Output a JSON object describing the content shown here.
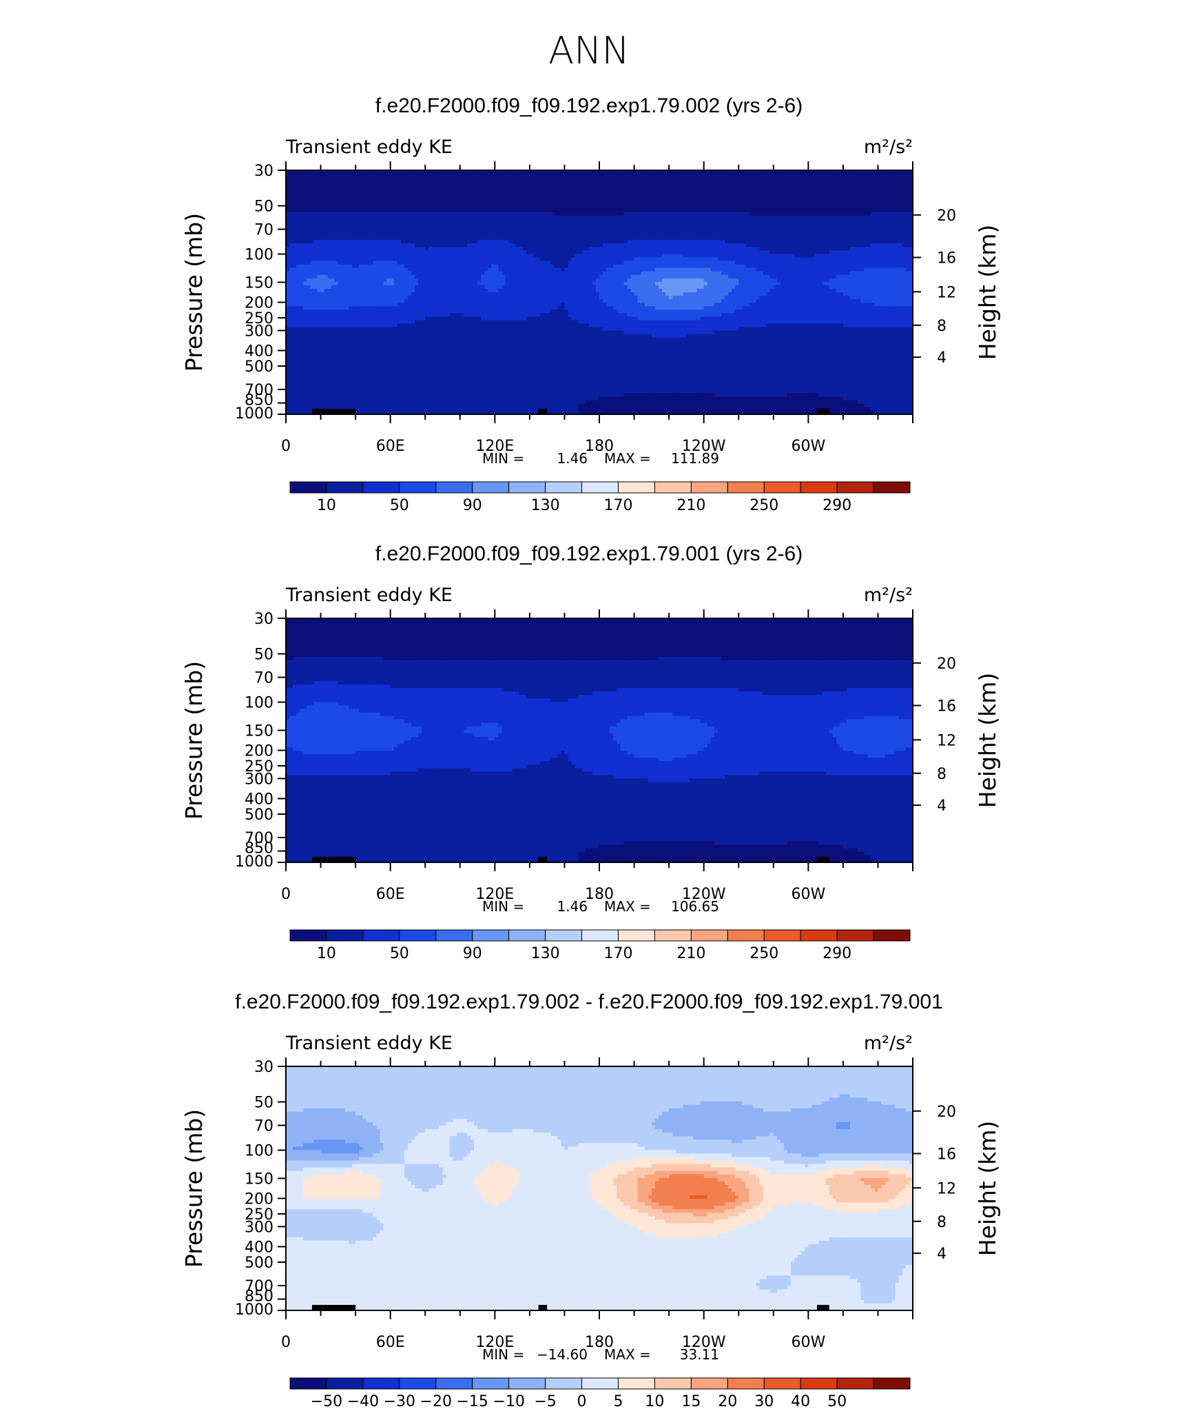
{
  "page_title": "ANN",
  "colors": {
    "cmap_abs": [
      "#0a0f7a",
      "#0a1ea0",
      "#1030d2",
      "#1c4ae8",
      "#3a6df0",
      "#6896f4",
      "#8fb2f7",
      "#b6cffa",
      "#dce9fd",
      "#fde6d6",
      "#fbc9ad",
      "#f7a67f",
      "#f2804f",
      "#eb5a27",
      "#db3b13",
      "#b42510",
      "#7e0d08"
    ],
    "cmap_diff": [
      "#0a0f7a",
      "#0a1ea0",
      "#1030d2",
      "#1c4ae8",
      "#3a6df0",
      "#6896f4",
      "#8fb2f7",
      "#b6cffa",
      "#dce9fd",
      "#fde6d6",
      "#fbc9ad",
      "#f7a67f",
      "#f2804f",
      "#eb5a27",
      "#db3b13",
      "#b42510",
      "#7e0d08"
    ]
  },
  "chart_data": [
    {
      "type": "heatmap",
      "title": "f.e20.F2000.f09_f09.192.exp1.79.002 (yrs 2-6)",
      "left_string": "Transient eddy KE",
      "units": "m²/s²",
      "xlabel": "",
      "ylabel": "Pressure (mb)",
      "y2label": "Height (km)",
      "x_ticks": [
        "0",
        "60E",
        "120E",
        "180",
        "120W",
        "60W"
      ],
      "y_ticks": [
        "30",
        "50",
        "70",
        "100",
        "150",
        "200",
        "250",
        "300",
        "400",
        "500",
        "700",
        "850",
        "1000"
      ],
      "y2_ticks": [
        "20",
        "16",
        "12",
        "8",
        "4"
      ],
      "stats": {
        "min_label": "MIN =",
        "min": "1.46",
        "max_label": "MAX =",
        "max": "111.89"
      },
      "colorbar_labels": [
        "10",
        "50",
        "90",
        "130",
        "170",
        "210",
        "250",
        "290"
      ],
      "levels": [
        10,
        30,
        50,
        70,
        90,
        110,
        130,
        150,
        170,
        190,
        210,
        230,
        250,
        270,
        290
      ],
      "field": "abs1"
    },
    {
      "type": "heatmap",
      "title": "f.e20.F2000.f09_f09.192.exp1.79.001 (yrs 2-6)",
      "left_string": "Transient eddy KE",
      "units": "m²/s²",
      "xlabel": "",
      "ylabel": "Pressure (mb)",
      "y2label": "Height (km)",
      "x_ticks": [
        "0",
        "60E",
        "120E",
        "180",
        "120W",
        "60W"
      ],
      "y_ticks": [
        "30",
        "50",
        "70",
        "100",
        "150",
        "200",
        "250",
        "300",
        "400",
        "500",
        "700",
        "850",
        "1000"
      ],
      "y2_ticks": [
        "20",
        "16",
        "12",
        "8",
        "4"
      ],
      "stats": {
        "min_label": "MIN =",
        "min": "1.46",
        "max_label": "MAX =",
        "max": "106.65"
      },
      "colorbar_labels": [
        "10",
        "50",
        "90",
        "130",
        "170",
        "210",
        "250",
        "290"
      ],
      "levels": [
        10,
        30,
        50,
        70,
        90,
        110,
        130,
        150,
        170,
        190,
        210,
        230,
        250,
        270,
        290
      ],
      "field": "abs2"
    },
    {
      "type": "heatmap",
      "title": "f.e20.F2000.f09_f09.192.exp1.79.002 - f.e20.F2000.f09_f09.192.exp1.79.001",
      "left_string": "Transient eddy KE",
      "units": "m²/s²",
      "xlabel": "",
      "ylabel": "Pressure (mb)",
      "y2label": "Height (km)",
      "x_ticks": [
        "0",
        "60E",
        "120E",
        "180",
        "120W",
        "60W"
      ],
      "y_ticks": [
        "30",
        "50",
        "70",
        "100",
        "150",
        "200",
        "250",
        "300",
        "400",
        "500",
        "700",
        "850",
        "1000"
      ],
      "y2_ticks": [
        "20",
        "16",
        "12",
        "8",
        "4"
      ],
      "stats": {
        "min_label": "MIN =",
        "min": "−14.60",
        "max_label": "MAX =",
        "max": "33.11"
      },
      "colorbar_labels": [
        "−50",
        "−40",
        "−30",
        "−20",
        "−15",
        "−10",
        "−5",
        "0",
        "5",
        "10",
        "15",
        "20",
        "30",
        "40",
        "50"
      ],
      "levels": [
        -50,
        -40,
        -30,
        -20,
        -15,
        -10,
        -5,
        0,
        5,
        10,
        15,
        20,
        30,
        40,
        50
      ],
      "field": "diff"
    }
  ]
}
